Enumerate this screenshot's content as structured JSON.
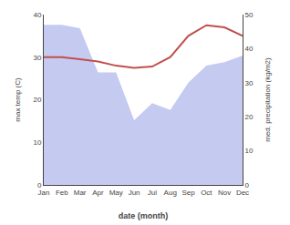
{
  "chart_data": {
    "type": "line",
    "xlabel": "date (month)",
    "ylabel": "max temp (C)",
    "y2label": "med. precipitation (kg/m2)",
    "categories": [
      "Jan",
      "Feb",
      "Mar",
      "Apr",
      "May",
      "Jun",
      "Jul",
      "Aug",
      "Sep",
      "Oct",
      "Nov",
      "Dec"
    ],
    "series": [
      {
        "type": "area",
        "axis": "y2",
        "color": "#c5caf0",
        "values": [
          47.0,
          47.0,
          46.0,
          33.0,
          33.0,
          19.0,
          24.0,
          22.0,
          30.0,
          35.0,
          36.0,
          38.0
        ]
      },
      {
        "type": "line",
        "color": "#c0504d",
        "values": [
          30.0,
          30.0,
          29.5,
          29.0,
          28.0,
          27.5,
          27.8,
          30.0,
          35.0,
          37.5,
          37.0,
          35.0
        ]
      }
    ],
    "ylim": [
      0,
      40
    ],
    "yticks": [
      0,
      10,
      20,
      30,
      40
    ],
    "y2lim": [
      0,
      50
    ],
    "y2ticks": [
      0,
      10,
      20,
      30,
      40,
      50
    ],
    "grid": false
  }
}
